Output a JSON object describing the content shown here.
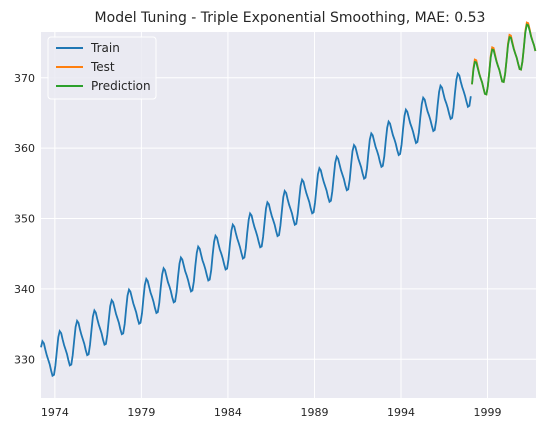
{
  "chart_data": {
    "type": "line",
    "title": "Model Tuning - Triple Exponential Smoothing, MAE: 0.53",
    "xlabel": "",
    "ylabel": "",
    "xlim": [
      1973.2,
      2001.8
    ],
    "ylim": [
      324.5,
      376.5
    ],
    "grid": true,
    "legend_position": "top-left",
    "x_ticks": [
      1974,
      1979,
      1984,
      1989,
      1994,
      1999
    ],
    "y_ticks": [
      330,
      340,
      350,
      360,
      370
    ],
    "series": [
      {
        "name": "Train",
        "color": "#1f77b4",
        "x_start": 1973.2,
        "x_end": 1998.1,
        "model": {
          "base": 329.5,
          "slope": 1.44,
          "start": 1973.2,
          "amplitude": 2.9,
          "peak_phase": 0.35
        }
      },
      {
        "name": "Test",
        "color": "#ff7f0e",
        "x_start": 1998.1,
        "x_end": 2001.8,
        "model": {
          "base": 329.5,
          "slope": 1.44,
          "start": 1973.2,
          "amplitude": 2.9,
          "peak_phase": 0.35,
          "extra": 0.3
        }
      },
      {
        "name": "Prediction",
        "color": "#2ca02c",
        "x_start": 1998.1,
        "x_end": 2001.8,
        "model": {
          "base": 329.5,
          "slope": 1.44,
          "start": 1973.2,
          "amplitude": 2.9,
          "peak_phase": 0.35,
          "extra": 0.0
        }
      }
    ]
  }
}
